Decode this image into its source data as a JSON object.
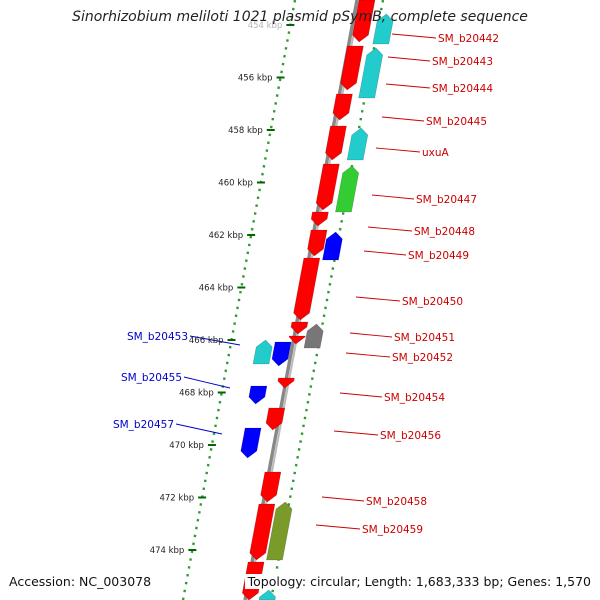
{
  "header": {
    "title": "Sinorhizobium meliloti 1021 plasmid pSymB, complete sequence"
  },
  "footer": {
    "accession": "Accession: NC_003078",
    "summary": "Topology: circular; Length: 1,683,333 bp; Genes: 1,570"
  },
  "colors": {
    "forward_strand": "#ff0000",
    "reverse_strand": "#0000ff",
    "cog_cyan": "#22cccc",
    "cog_green": "#33cc33",
    "cog_gray": "#777777",
    "cog_olive": "#7a9a2a",
    "label_forward": "#cc0000",
    "label_reverse": "#0000cc",
    "tick_green": "#006600",
    "backbone": "#888888"
  },
  "ruler": {
    "ticks": [
      "454 kbp",
      "456 kbp",
      "458 kbp",
      "460 kbp",
      "462 kbp",
      "464 kbp",
      "466 kbp",
      "468 kbp",
      "470 kbp",
      "472 kbp",
      "474 kbp"
    ]
  },
  "genes": {
    "forward_labels": [
      "SM_b20442",
      "SM_b20443",
      "SM_b20444",
      "SM_b20445",
      "uxuA",
      "SM_b20447",
      "SM_b20448",
      "SM_b20449",
      "SM_b20450",
      "SM_b20451",
      "SM_b20452",
      "SM_b20454",
      "SM_b20456",
      "SM_b20458",
      "SM_b20459"
    ],
    "reverse_labels": [
      "SM_b20453",
      "SM_b20455",
      "SM_b20457"
    ]
  }
}
